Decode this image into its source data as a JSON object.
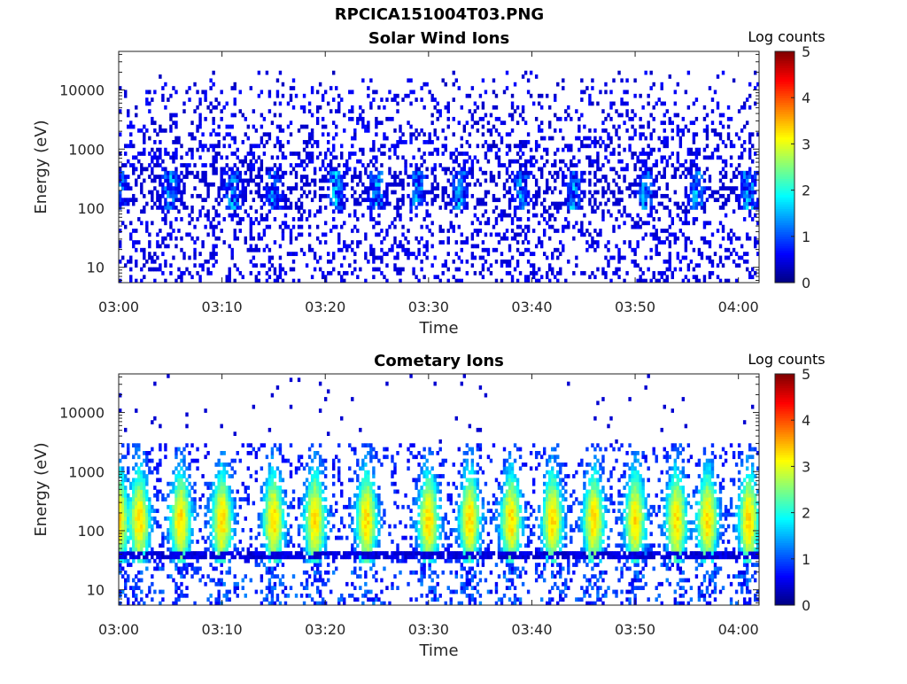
{
  "figure": {
    "title": "RPCICA151004T03.PNG"
  },
  "chart_data": [
    {
      "type": "heatmap",
      "title": "Solar Wind Ions",
      "xlabel": "Time",
      "ylabel": "Energy (eV)",
      "x_range": [
        "03:00",
        "04:02"
      ],
      "x_ticks": [
        "03:00",
        "03:10",
        "03:20",
        "03:30",
        "03:40",
        "03:50",
        "04:00"
      ],
      "y_scale": "log",
      "y_range": [
        5.5,
        45000
      ],
      "y_ticks": [
        10,
        100,
        1000,
        10000
      ],
      "y_tick_labels": [
        "10",
        "100",
        "1000",
        "10000"
      ],
      "colorbar": {
        "label": "Log counts",
        "range": [
          0,
          5
        ],
        "ticks": [
          "0",
          "1",
          "2",
          "3",
          "4",
          "5"
        ],
        "colormap": "jet"
      },
      "features": {
        "dominant_band_energy_eV": [
          100,
          450
        ],
        "typical_log_counts": [
          0,
          2
        ],
        "sparse_high_energy_up_to_eV": 20000,
        "burst_times": [
          "03:00",
          "03:05",
          "03:11",
          "03:15",
          "03:21",
          "03:25",
          "03:29",
          "03:33",
          "03:39",
          "03:44",
          "03:51",
          "03:56",
          "04:01"
        ]
      }
    },
    {
      "type": "heatmap",
      "title": "Cometary Ions",
      "xlabel": "Time",
      "ylabel": "Energy (eV)",
      "x_range": [
        "03:00",
        "04:02"
      ],
      "x_ticks": [
        "03:00",
        "03:10",
        "03:20",
        "03:30",
        "03:40",
        "03:50",
        "04:00"
      ],
      "y_scale": "log",
      "y_range": [
        5.5,
        45000
      ],
      "y_ticks": [
        10,
        100,
        1000,
        10000
      ],
      "y_tick_labels": [
        "10",
        "100",
        "1000",
        "10000"
      ],
      "colorbar": {
        "label": "Log counts",
        "range": [
          0,
          5
        ],
        "ticks": [
          "0",
          "1",
          "2",
          "3",
          "4",
          "5"
        ],
        "colormap": "jet"
      },
      "features": {
        "dominant_band_energy_eV": [
          40,
          1500
        ],
        "peak_energy_eV": 150,
        "typical_log_counts": [
          1,
          3
        ],
        "low_energy_line_eV": 40,
        "burst_times": [
          "03:00",
          "03:02",
          "03:06",
          "03:10",
          "03:15",
          "03:19",
          "03:24",
          "03:30",
          "03:34",
          "03:38",
          "03:42",
          "03:46",
          "03:50",
          "03:54",
          "03:57",
          "04:01"
        ]
      }
    }
  ]
}
